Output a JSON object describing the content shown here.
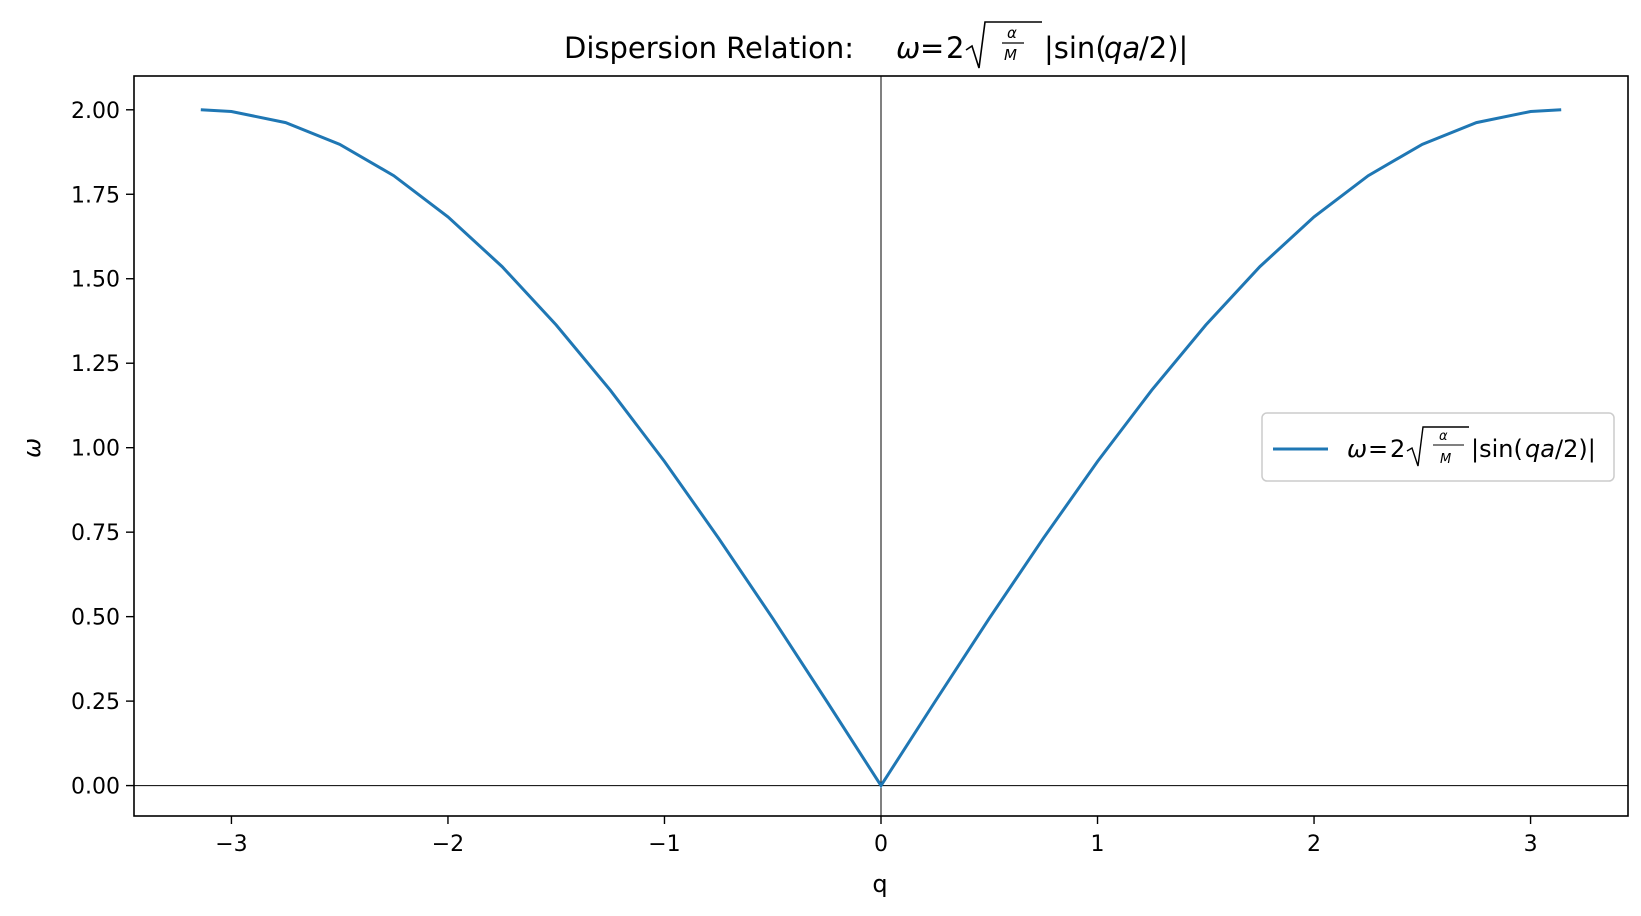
{
  "chart_data": {
    "type": "line",
    "title": "Dispersion Relation: ω = 2√(α/M)|sin(qa/2)|",
    "xlabel": "q",
    "ylabel": "ω",
    "xlim": [
      -3.45,
      3.45
    ],
    "ylim": [
      -0.09,
      2.1
    ],
    "x_ticks": [
      -3,
      -2,
      -1,
      0,
      1,
      2,
      3
    ],
    "x_tick_labels": [
      "−3",
      "−2",
      "−1",
      "0",
      "1",
      "2",
      "3"
    ],
    "y_ticks": [
      0.0,
      0.25,
      0.5,
      0.75,
      1.0,
      1.25,
      1.5,
      1.75,
      2.0
    ],
    "y_tick_labels": [
      "0.00",
      "0.25",
      "0.50",
      "0.75",
      "1.00",
      "1.25",
      "1.50",
      "1.75",
      "2.00"
    ],
    "grid": false,
    "reference_lines": {
      "x": 0,
      "y": 0
    },
    "legend_position": "center-right",
    "series": [
      {
        "name": "ω = 2√(α/M)|sin(qa/2)|",
        "color": "#1f77b4",
        "x": [
          -3.1416,
          -3.0,
          -2.75,
          -2.5,
          -2.25,
          -2.0,
          -1.75,
          -1.5,
          -1.25,
          -1.0,
          -0.75,
          -0.5,
          -0.25,
          0.0,
          0.25,
          0.5,
          0.75,
          1.0,
          1.25,
          1.5,
          1.75,
          2.0,
          2.25,
          2.5,
          2.75,
          3.0,
          3.1416
        ],
        "y": [
          2.0,
          1.995,
          1.962,
          1.898,
          1.805,
          1.683,
          1.536,
          1.363,
          1.17,
          0.959,
          0.732,
          0.495,
          0.249,
          0.0,
          0.249,
          0.495,
          0.732,
          0.959,
          1.17,
          1.363,
          1.536,
          1.683,
          1.805,
          1.898,
          1.962,
          1.995,
          2.0
        ]
      }
    ]
  }
}
